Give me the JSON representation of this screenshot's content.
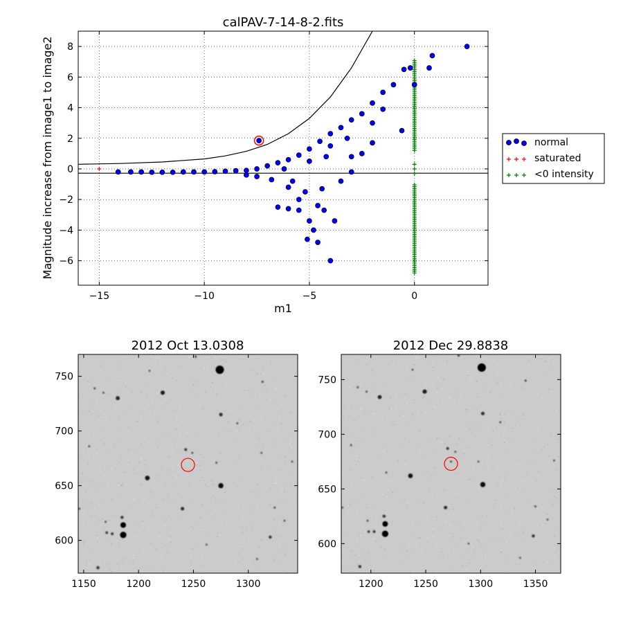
{
  "chart_data": [
    {
      "type": "scatter",
      "title": "calPAV-7-14-8-2.fits",
      "xlabel": "m1",
      "ylabel": "Magnitude increase from image1 to image2",
      "xlim": [
        -16,
        3.5
      ],
      "ylim": [
        -7.6,
        9
      ],
      "xticks": [
        -15,
        -10,
        -5,
        0
      ],
      "xtick_labels": [
        "−15",
        "−10",
        "−5",
        "0"
      ],
      "yticks": [
        -6,
        -4,
        -2,
        0,
        2,
        4,
        6,
        8
      ],
      "ytick_labels": [
        "−6",
        "−4",
        "−2",
        "0",
        "2",
        "4",
        "6",
        "8"
      ],
      "grid": true,
      "legend_position": "right, outside plot",
      "legend": [
        "normal",
        "saturated",
        "<0 intensity"
      ],
      "colors": {
        "normal": "#0000ff",
        "saturated": "#ff0000",
        "negative": "#008000",
        "highlight": "#ff0000"
      },
      "series": [
        {
          "name": "normal",
          "marker": "circle",
          "color": "#0000ff",
          "points": [
            [
              -14.1,
              -0.2
            ],
            [
              -13.5,
              -0.2
            ],
            [
              -13.0,
              -0.2
            ],
            [
              -12.5,
              -0.22
            ],
            [
              -12.0,
              -0.22
            ],
            [
              -11.5,
              -0.22
            ],
            [
              -11.0,
              -0.2
            ],
            [
              -10.5,
              -0.2
            ],
            [
              -10.0,
              -0.2
            ],
            [
              -9.5,
              -0.18
            ],
            [
              -9.0,
              -0.15
            ],
            [
              -8.5,
              -0.12
            ],
            [
              -8.0,
              -0.1
            ],
            [
              -7.5,
              0.0
            ],
            [
              -7.0,
              0.2
            ],
            [
              -6.5,
              0.4
            ],
            [
              -6.0,
              0.6
            ],
            [
              -5.5,
              0.9
            ],
            [
              -5.0,
              1.3
            ],
            [
              -4.5,
              1.8
            ],
            [
              -4.0,
              2.3
            ],
            [
              -3.5,
              2.7
            ],
            [
              -3.0,
              3.2
            ],
            [
              -2.5,
              3.6
            ],
            [
              -2.0,
              4.3
            ],
            [
              -1.5,
              5.0
            ],
            [
              -1.0,
              5.5
            ],
            [
              -0.5,
              6.5
            ],
            [
              -0.2,
              6.6
            ],
            [
              0.0,
              5.5
            ],
            [
              0.7,
              6.6
            ],
            [
              0.85,
              7.4
            ],
            [
              2.5,
              8.0
            ],
            [
              -0.6,
              2.5
            ],
            [
              -2.5,
              1.0
            ],
            [
              -3.0,
              0.8
            ],
            [
              -7.4,
              1.85
            ],
            [
              -6.5,
              -2.5
            ],
            [
              -6.0,
              -2.6
            ],
            [
              -5.5,
              -2.7
            ],
            [
              -5.0,
              -3.4
            ],
            [
              -4.8,
              -4.0
            ],
            [
              -5.1,
              -4.6
            ],
            [
              -4.6,
              -4.8
            ],
            [
              -4.0,
              -6.0
            ],
            [
              -4.3,
              -2.7
            ],
            [
              -5.5,
              -2.0
            ],
            [
              -4.6,
              -2.4
            ],
            [
              -5.2,
              -1.5
            ],
            [
              -6.0,
              -1.2
            ],
            [
              -6.8,
              -0.7
            ],
            [
              -7.5,
              -0.5
            ],
            [
              -8.0,
              -0.4
            ],
            [
              -3.8,
              -3.4
            ],
            [
              -4.4,
              -1.3
            ],
            [
              -3.5,
              -0.8
            ],
            [
              -3.0,
              -0.2
            ],
            [
              -2.0,
              1.7
            ],
            [
              -2.0,
              3.0
            ],
            [
              -1.5,
              3.9
            ],
            [
              -4.2,
              0.8
            ],
            [
              -5.8,
              -0.8
            ],
            [
              -6.2,
              0.0
            ],
            [
              -5.0,
              0.5
            ],
            [
              -4.0,
              1.5
            ],
            [
              -3.2,
              2.0
            ]
          ]
        },
        {
          "name": "saturated",
          "marker": "plus",
          "color": "#ff0000",
          "points": [
            [
              -15.0,
              0.0
            ]
          ]
        },
        {
          "name": "<0 intensity",
          "marker": "plus",
          "color": "#008000",
          "x": 0.0,
          "y_ranges": [
            [
              1.2,
              7.2
            ],
            [
              -6.8,
              -1.0
            ]
          ],
          "y_points": [
            0.0,
            -0.3,
            0.3
          ]
        }
      ],
      "curves": [
        {
          "kind": "line",
          "description": "curved upper threshold",
          "points": [
            [
              -16,
              0.3
            ],
            [
              -14,
              0.35
            ],
            [
              -12,
              0.45
            ],
            [
              -10,
              0.65
            ],
            [
              -9,
              0.85
            ],
            [
              -8,
              1.15
            ],
            [
              -7,
              1.6
            ],
            [
              -6,
              2.3
            ],
            [
              -5,
              3.3
            ],
            [
              -4,
              4.7
            ],
            [
              -3,
              6.6
            ],
            [
              -2,
              9.0
            ]
          ]
        },
        {
          "kind": "hline",
          "y": -0.28
        }
      ],
      "highlight_point": [
        -7.4,
        1.85
      ]
    },
    {
      "type": "heatmap",
      "title": "2012 Oct 13.0308",
      "xlim": [
        1145,
        1345
      ],
      "ylim": [
        570,
        770
      ],
      "xticks": [
        1150,
        1200,
        1250,
        1300
      ],
      "yticks": [
        600,
        650,
        700,
        750
      ],
      "colormap": "gray_r",
      "circle": {
        "x": 1245,
        "y": 669,
        "r": 6
      },
      "stars": [
        [
          1274,
          756,
          4.2
        ],
        [
          1186,
          605,
          3.2
        ],
        [
          1186,
          614,
          2.8
        ],
        [
          1181,
          730,
          2.0
        ],
        [
          1222,
          735,
          2.2
        ],
        [
          1208,
          657,
          2.4
        ],
        [
          1275,
          650,
          2.6
        ],
        [
          1275,
          715,
          1.8
        ],
        [
          1240,
          629,
          1.8
        ],
        [
          1243,
          683,
          1.5
        ],
        [
          1185,
          621,
          1.6
        ],
        [
          1176,
          606,
          1.5
        ],
        [
          1171,
          607,
          1.4
        ],
        [
          1163,
          575,
          1.6
        ],
        [
          1320,
          603,
          1.6
        ],
        [
          1252,
          768,
          1.2
        ],
        [
          1313,
          745,
          1.1
        ],
        [
          1290,
          707,
          0.9
        ],
        [
          1160,
          739,
          0.9
        ],
        [
          1168,
          735,
          0.9
        ],
        [
          1155,
          686,
          0.8
        ],
        [
          1146,
          629,
          1.0
        ],
        [
          1170,
          617,
          0.8
        ],
        [
          1340,
          672,
          0.8
        ],
        [
          1324,
          630,
          0.9
        ],
        [
          1249,
          680,
          0.8
        ],
        [
          1271,
          671,
          0.8
        ],
        [
          1333,
          618,
          0.7
        ],
        [
          1308,
          583,
          0.7
        ],
        [
          1262,
          596,
          0.7
        ],
        [
          1210,
          755,
          0.7
        ],
        [
          1312,
          680,
          0.7
        ]
      ]
    },
    {
      "type": "heatmap",
      "title": "2012 Dec 29.8838",
      "xlim": [
        1173,
        1373
      ],
      "ylim": [
        573,
        773
      ],
      "xticks": [
        1200,
        1250,
        1300,
        1350
      ],
      "yticks": [
        600,
        650,
        700,
        750
      ],
      "colormap": "gray_r",
      "circle": {
        "x": 1273,
        "y": 673,
        "r": 6
      },
      "stars": [
        [
          1301,
          761,
          4.2
        ],
        [
          1213,
          609,
          3.2
        ],
        [
          1213,
          618,
          2.8
        ],
        [
          1208,
          734,
          2.0
        ],
        [
          1249,
          739,
          2.2
        ],
        [
          1236,
          662,
          2.4
        ],
        [
          1302,
          654,
          2.6
        ],
        [
          1302,
          719,
          1.8
        ],
        [
          1268,
          633,
          1.8
        ],
        [
          1270,
          687,
          1.5
        ],
        [
          1212,
          625,
          1.6
        ],
        [
          1203,
          611,
          1.5
        ],
        [
          1198,
          611,
          1.4
        ],
        [
          1190,
          579,
          1.6
        ],
        [
          1348,
          607,
          1.6
        ],
        [
          1280,
          772,
          1.2
        ],
        [
          1341,
          749,
          1.1
        ],
        [
          1318,
          711,
          0.9
        ],
        [
          1188,
          743,
          0.9
        ],
        [
          1196,
          739,
          0.9
        ],
        [
          1182,
          690,
          0.8
        ],
        [
          1174,
          633,
          1.0
        ],
        [
          1197,
          621,
          0.8
        ],
        [
          1367,
          676,
          0.8
        ],
        [
          1350,
          634,
          0.9
        ],
        [
          1277,
          684,
          0.8
        ],
        [
          1298,
          675,
          0.7
        ],
        [
          1361,
          622,
          0.7
        ],
        [
          1336,
          587,
          0.7
        ],
        [
          1289,
          600,
          0.7
        ],
        [
          1238,
          759,
          0.7
        ],
        [
          1273,
          675,
          1.0
        ],
        [
          1214,
          665,
          0.8
        ]
      ]
    }
  ]
}
